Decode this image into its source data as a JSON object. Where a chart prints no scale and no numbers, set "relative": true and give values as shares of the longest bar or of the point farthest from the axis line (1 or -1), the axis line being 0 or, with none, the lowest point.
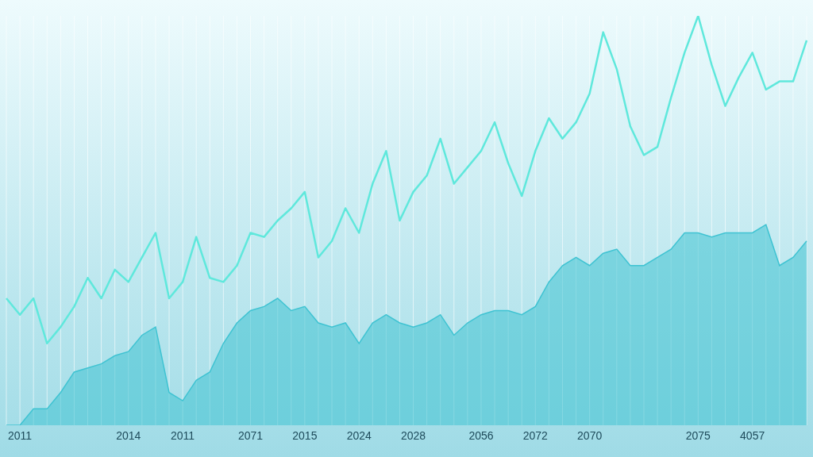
{
  "chart_data": {
    "type": "line",
    "relative": true,
    "grid": "x",
    "marker": "none",
    "line_style": "solid",
    "categories": [
      null,
      "2011",
      null,
      null,
      null,
      null,
      null,
      null,
      null,
      "2014",
      null,
      null,
      null,
      "2011",
      null,
      null,
      null,
      null,
      "2071",
      null,
      null,
      null,
      "2015",
      null,
      null,
      null,
      "2024",
      null,
      null,
      null,
      "2028",
      null,
      null,
      null,
      null,
      "2056",
      null,
      null,
      null,
      "2072",
      null,
      null,
      null,
      "2070",
      null,
      null,
      null,
      null,
      null,
      null,
      null,
      "2075",
      null,
      null,
      null,
      "4057",
      null,
      null,
      null,
      null
    ],
    "series": [
      {
        "type": "area",
        "color": "#3fc3d2",
        "values": [
          0,
          0,
          0.04,
          0.04,
          0.08,
          0.13,
          0.14,
          0.15,
          0.17,
          0.18,
          0.22,
          0.24,
          0.08,
          0.06,
          0.11,
          0.13,
          0.2,
          0.25,
          0.28,
          0.29,
          0.31,
          0.28,
          0.29,
          0.25,
          0.24,
          0.25,
          0.2,
          0.25,
          0.27,
          0.25,
          0.24,
          0.25,
          0.27,
          0.22,
          0.25,
          0.27,
          0.28,
          0.28,
          0.27,
          0.29,
          0.35,
          0.39,
          0.41,
          0.39,
          0.42,
          0.43,
          0.39,
          0.39,
          0.41,
          0.43,
          0.47,
          0.47,
          0.46,
          0.47,
          0.47,
          0.47,
          0.49,
          0.39,
          0.41,
          0.45
        ]
      },
      {
        "type": "line",
        "color": "#5fe8dc",
        "values": [
          0.31,
          0.27,
          0.31,
          0.2,
          0.24,
          0.29,
          0.36,
          0.31,
          0.38,
          0.35,
          0.41,
          0.47,
          0.31,
          0.35,
          0.46,
          0.36,
          0.35,
          0.39,
          0.47,
          0.46,
          0.5,
          0.53,
          0.57,
          0.41,
          0.45,
          0.53,
          0.47,
          0.59,
          0.67,
          0.5,
          0.57,
          0.61,
          0.7,
          0.59,
          0.63,
          0.67,
          0.74,
          0.64,
          0.56,
          0.67,
          0.75,
          0.7,
          0.74,
          0.81,
          0.96,
          0.87,
          0.73,
          0.66,
          0.68,
          0.8,
          0.91,
          1,
          0.88,
          0.78,
          0.85,
          0.91,
          0.82,
          0.84,
          0.84,
          0.94
        ]
      }
    ]
  }
}
